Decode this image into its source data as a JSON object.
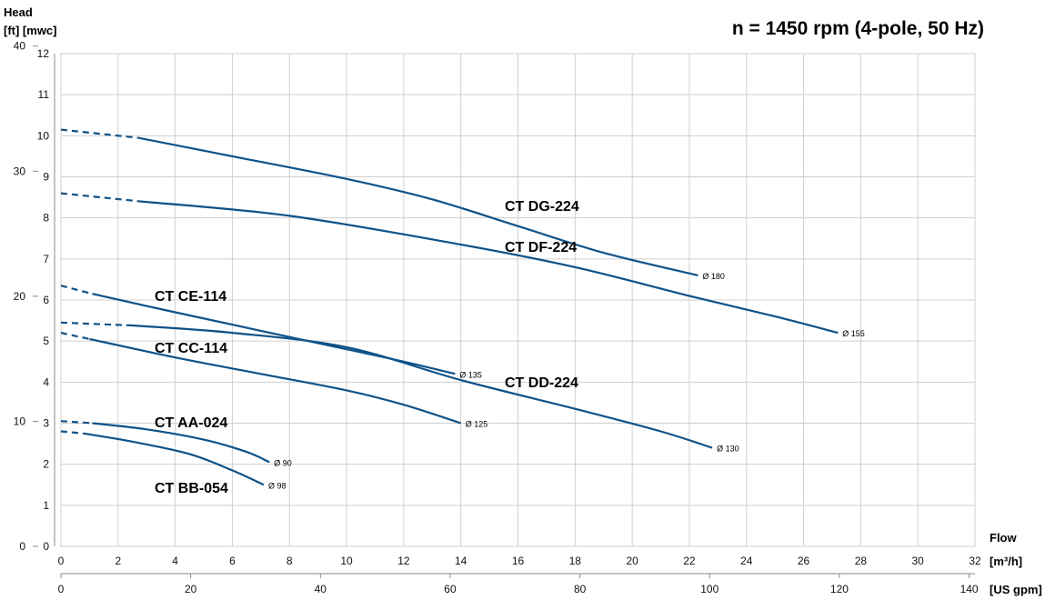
{
  "chart_data": {
    "type": "line",
    "title": "n = 1450 rpm (4-pole, 50 Hz)",
    "ylabel_head": "Head",
    "ylabel_units": "[ft] [mwc]",
    "xlabel": "Flow",
    "x_unit_m3h": "[m³/h]",
    "x_unit_usgpm": "[US gpm]",
    "grid": true,
    "xlim_m3h": [
      0,
      32
    ],
    "ylim_mwc": [
      0,
      12
    ],
    "xlim_usgpm": [
      0,
      140.9
    ],
    "ylim_ft": [
      0,
      39.4
    ],
    "x_ticks_m3h": [
      "0",
      "2",
      "4",
      "6",
      "8",
      "10",
      "12",
      "14",
      "16",
      "18",
      "20",
      "22",
      "24",
      "26",
      "28",
      "30",
      "32"
    ],
    "y_ticks_mwc": [
      "0",
      "1",
      "2",
      "3",
      "4",
      "5",
      "6",
      "7",
      "8",
      "9",
      "10",
      "11",
      "12"
    ],
    "x_ticks_usgpm": [
      "0",
      "20",
      "40",
      "60",
      "80",
      "100",
      "120",
      "140"
    ],
    "y_ticks_ft": [
      "0",
      "10",
      "20",
      "30",
      "40"
    ],
    "series": [
      {
        "name": "CT DG-224",
        "diameter": "Ø 180",
        "x": [
          0,
          2.7,
          6,
          10,
          13,
          16,
          19,
          22.3
        ],
        "y": [
          10.15,
          9.95,
          9.5,
          8.95,
          8.45,
          7.8,
          7.15,
          6.6
        ],
        "dashed_until": 2.7
      },
      {
        "name": "CT DF-224",
        "diameter": "Ø 155",
        "x": [
          0,
          2.8,
          8,
          14,
          18,
          22,
          25,
          27.2
        ],
        "y": [
          8.6,
          8.4,
          8.05,
          7.35,
          6.8,
          6.1,
          5.6,
          5.2
        ],
        "dashed_until": 2.8
      },
      {
        "name": "CT CE-114",
        "diameter": "Ø 135",
        "x": [
          0,
          1.1,
          4,
          7,
          10,
          12,
          13.8
        ],
        "y": [
          6.35,
          6.15,
          5.7,
          5.25,
          4.8,
          4.5,
          4.2
        ],
        "dashed_until": 1.1
      },
      {
        "name": "CT DD-224",
        "diameter": "Ø 130",
        "x": [
          0,
          2.5,
          6,
          10,
          14,
          18,
          21,
          22.8
        ],
        "y": [
          5.45,
          5.38,
          5.2,
          4.85,
          4.05,
          3.35,
          2.8,
          2.4
        ],
        "dashed_until": 2.5
      },
      {
        "name": "CT CC-114",
        "diameter": "Ø 125",
        "x": [
          0,
          1.0,
          4,
          7,
          10,
          12,
          14
        ],
        "y": [
          5.2,
          5.05,
          4.6,
          4.2,
          3.8,
          3.45,
          3.0
        ],
        "dashed_until": 1.0
      },
      {
        "name": "CT AA-024",
        "diameter": "Ø 90",
        "x": [
          0,
          1.1,
          3,
          5,
          6.5,
          7.3
        ],
        "y": [
          3.05,
          3.0,
          2.85,
          2.6,
          2.3,
          2.05
        ],
        "dashed_until": 1.1
      },
      {
        "name": "CT BB-054",
        "diameter": "Ø 98",
        "x": [
          0,
          0.8,
          2.5,
          4.5,
          6,
          7.1
        ],
        "y": [
          2.8,
          2.75,
          2.55,
          2.25,
          1.85,
          1.5
        ],
        "dashed_until": 0.8
      }
    ],
    "colors": {
      "curve": "#0f5287",
      "grid": "#cfcfcf",
      "axis": "#888888"
    }
  }
}
